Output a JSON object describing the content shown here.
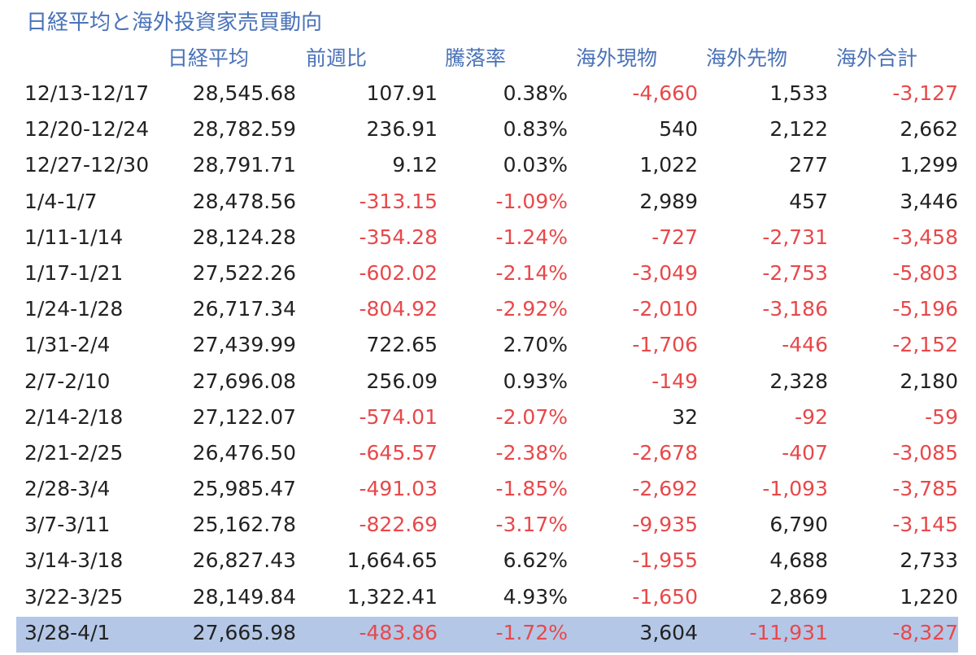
{
  "title": "日経平均と海外投資家売買動向",
  "headers": {
    "nikkei": "日経平均",
    "change": "前週比",
    "rate": "騰落率",
    "spot": "海外現物",
    "futures": "海外先物",
    "total": "海外合計"
  },
  "colors": {
    "title": "#4a72b8",
    "negative": "#e8484a",
    "highlight": "#b4c7e7"
  },
  "rows": [
    {
      "period": "12/13-12/17",
      "nikkei": "28,545.68",
      "change": "107.91",
      "rate": "0.38%",
      "spot": "-4,660",
      "futures": "1,533",
      "total": "-3,127"
    },
    {
      "period": "12/20-12/24",
      "nikkei": "28,782.59",
      "change": "236.91",
      "rate": "0.83%",
      "spot": "540",
      "futures": "2,122",
      "total": "2,662"
    },
    {
      "period": "12/27-12/30",
      "nikkei": "28,791.71",
      "change": "9.12",
      "rate": "0.03%",
      "spot": "1,022",
      "futures": "277",
      "total": "1,299"
    },
    {
      "period": "1/4-1/7",
      "nikkei": "28,478.56",
      "change": "-313.15",
      "rate": "-1.09%",
      "spot": "2,989",
      "futures": "457",
      "total": "3,446"
    },
    {
      "period": "1/11-1/14",
      "nikkei": "28,124.28",
      "change": "-354.28",
      "rate": "-1.24%",
      "spot": "-727",
      "futures": "-2,731",
      "total": "-3,458"
    },
    {
      "period": "1/17-1/21",
      "nikkei": "27,522.26",
      "change": "-602.02",
      "rate": "-2.14%",
      "spot": "-3,049",
      "futures": "-2,753",
      "total": "-5,803"
    },
    {
      "period": "1/24-1/28",
      "nikkei": "26,717.34",
      "change": "-804.92",
      "rate": "-2.92%",
      "spot": "-2,010",
      "futures": "-3,186",
      "total": "-5,196"
    },
    {
      "period": "1/31-2/4",
      "nikkei": "27,439.99",
      "change": "722.65",
      "rate": "2.70%",
      "spot": "-1,706",
      "futures": "-446",
      "total": "-2,152"
    },
    {
      "period": "2/7-2/10",
      "nikkei": "27,696.08",
      "change": "256.09",
      "rate": "0.93%",
      "spot": "-149",
      "futures": "2,328",
      "total": "2,180"
    },
    {
      "period": "2/14-2/18",
      "nikkei": "27,122.07",
      "change": "-574.01",
      "rate": "-2.07%",
      "spot": "32",
      "futures": "-92",
      "total": "-59"
    },
    {
      "period": "2/21-2/25",
      "nikkei": "26,476.50",
      "change": "-645.57",
      "rate": "-2.38%",
      "spot": "-2,678",
      "futures": "-407",
      "total": "-3,085"
    },
    {
      "period": "2/28-3/4",
      "nikkei": "25,985.47",
      "change": "-491.03",
      "rate": "-1.85%",
      "spot": "-2,692",
      "futures": "-1,093",
      "total": "-3,785"
    },
    {
      "period": "3/7-3/11",
      "nikkei": "25,162.78",
      "change": "-822.69",
      "rate": "-3.17%",
      "spot": "-9,935",
      "futures": "6,790",
      "total": "-3,145"
    },
    {
      "period": "3/14-3/18",
      "nikkei": "26,827.43",
      "change": "1,664.65",
      "rate": "6.62%",
      "spot": "-1,955",
      "futures": "4,688",
      "total": "2,733"
    },
    {
      "period": "3/22-3/25",
      "nikkei": "28,149.84",
      "change": "1,322.41",
      "rate": "4.93%",
      "spot": "-1,650",
      "futures": "2,869",
      "total": "1,220"
    },
    {
      "period": "3/28-4/1",
      "nikkei": "27,665.98",
      "change": "-483.86",
      "rate": "-1.72%",
      "spot": "3,604",
      "futures": "-11,931",
      "total": "-8,327",
      "highlight": true
    }
  ]
}
